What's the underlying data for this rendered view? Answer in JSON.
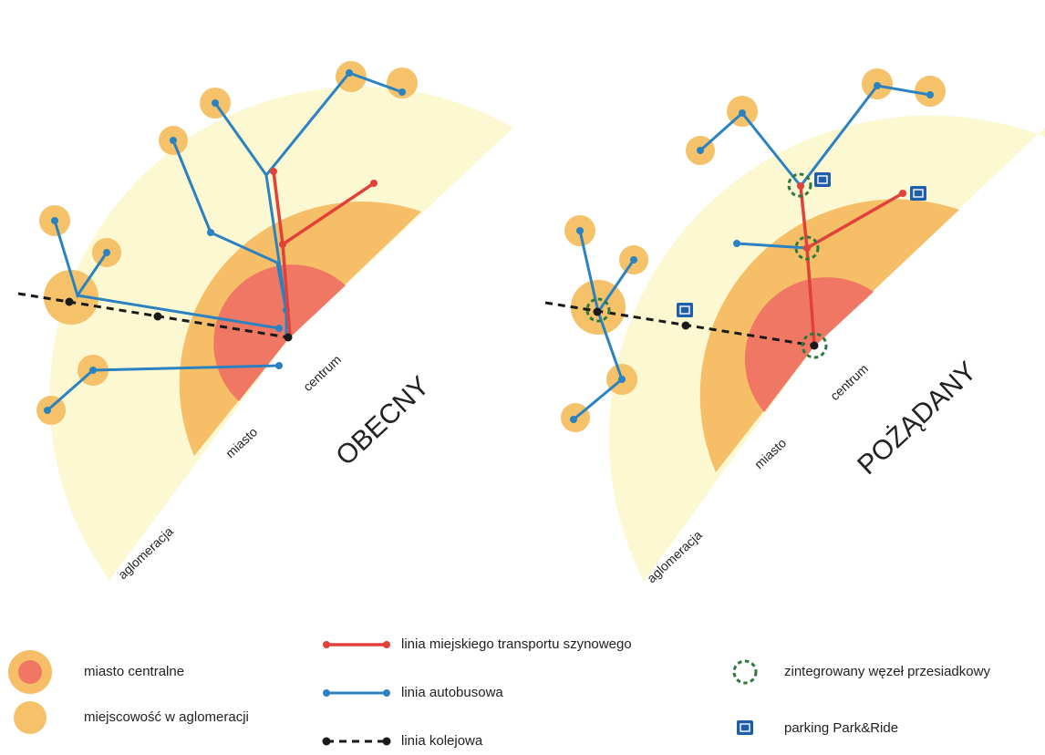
{
  "diagrams": [
    {
      "id": "obecny",
      "title": "OBECNY",
      "zone_labels": {
        "centrum": "centrum",
        "miasto": "miasto",
        "aglomeracja": "aglomeracja"
      }
    },
    {
      "id": "pozadany",
      "title": "POŻĄDANY",
      "zone_labels": {
        "centrum": "centrum",
        "miasto": "miasto",
        "aglomeracja": "aglomeracja"
      }
    }
  ],
  "legend": {
    "central_city": "miasto centralne",
    "agglomeration_town": "miejscowość w aglomeracji",
    "rail_transit_line": "linia miejskiego transportu szynowego",
    "bus_line": "linia autobusowa",
    "railway_line": "linia kolejowa",
    "interchange_node": "zintegrowany węzeł przesiadkowy",
    "park_and_ride": "parking Park&Ride"
  },
  "colors": {
    "agglomeration_zone": "#fbf8d2",
    "city_zone": "#f6be66",
    "center_zone": "#ef7763",
    "town": "#f5c169",
    "rail_transit": "#e2413a",
    "bus": "#2a83c0",
    "railway": "#1a1a1a",
    "interchange": "#2d7a3e",
    "park_ride": "#1f5ea8"
  },
  "icons": {
    "central_city": "central-city-icon",
    "town": "agglomeration-town-icon",
    "interchange": "interchange-node-icon",
    "park_ride": "park-and-ride-icon"
  }
}
